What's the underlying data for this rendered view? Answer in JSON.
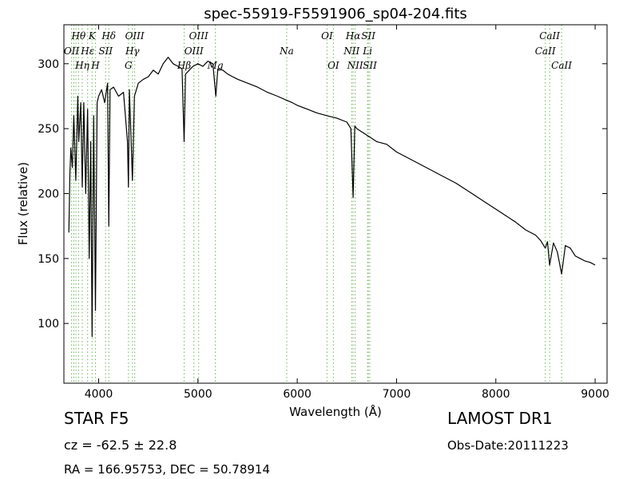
{
  "chart_data": {
    "type": "line",
    "title": "spec-55919-F5591906_sp04-204.fits",
    "xlabel": "Wavelength (Å)",
    "ylabel": "Flux (relative)",
    "xlim": [
      3650,
      9120
    ],
    "ylim": [
      54,
      330
    ],
    "xticks": [
      4000,
      5000,
      6000,
      7000,
      8000,
      9000
    ],
    "yticks": [
      100,
      150,
      200,
      250,
      300
    ],
    "grid": false,
    "line_color": "#000000",
    "marker_color": "#77bb66",
    "series": [
      {
        "x": [
          3700,
          3710,
          3720,
          3735,
          3750,
          3770,
          3790,
          3800,
          3820,
          3835,
          3850,
          3870,
          3889,
          3905,
          3920,
          3934,
          3950,
          3968,
          3985,
          4000,
          4030,
          4060,
          4090,
          4102,
          4115,
          4150,
          4200,
          4250,
          4290,
          4300,
          4310,
          4340,
          4360,
          4400,
          4450,
          4500,
          4550,
          4600,
          4650,
          4700,
          4750,
          4800,
          4840,
          4861,
          4875,
          4900,
          4950,
          5000,
          5050,
          5100,
          5150,
          5180,
          5200,
          5250,
          5300,
          5350,
          5400,
          5500,
          5600,
          5700,
          5800,
          5890,
          5950,
          6000,
          6100,
          6200,
          6300,
          6400,
          6500,
          6540,
          6563,
          6580,
          6600,
          6700,
          6800,
          6900,
          7000,
          7100,
          7200,
          7300,
          7400,
          7500,
          7600,
          7700,
          7800,
          7900,
          8000,
          8100,
          8200,
          8300,
          8400,
          8450,
          8498,
          8520,
          8542,
          8580,
          8620,
          8662,
          8700,
          8750,
          8800,
          8850,
          8900,
          8950,
          9000
        ],
        "y": [
          170,
          215,
          235,
          220,
          260,
          210,
          275,
          240,
          270,
          205,
          270,
          200,
          265,
          150,
          240,
          90,
          260,
          110,
          270,
          275,
          280,
          270,
          285,
          175,
          280,
          282,
          275,
          278,
          240,
          205,
          280,
          210,
          275,
          285,
          288,
          290,
          295,
          292,
          300,
          305,
          300,
          298,
          296,
          240,
          292,
          294,
          298,
          300,
          298,
          302,
          300,
          275,
          296,
          295,
          292,
          290,
          288,
          285,
          282,
          278,
          275,
          272,
          270,
          268,
          265,
          262,
          260,
          258,
          255,
          250,
          197,
          252,
          250,
          245,
          240,
          238,
          232,
          228,
          224,
          220,
          216,
          212,
          208,
          203,
          198,
          193,
          188,
          183,
          178,
          172,
          168,
          164,
          158,
          163,
          145,
          162,
          155,
          138,
          160,
          158,
          152,
          150,
          148,
          147,
          145
        ]
      }
    ],
    "lines": [
      {
        "wl": 3727,
        "label": "OII",
        "tier": 2
      },
      {
        "wl": 3750,
        "label": "",
        "tier": 0
      },
      {
        "wl": 3771,
        "label": "",
        "tier": 0
      },
      {
        "wl": 3798,
        "label": "Hθ",
        "tier": 1
      },
      {
        "wl": 3835,
        "label": "Hη",
        "tier": 3
      },
      {
        "wl": 3889,
        "label": "Hε",
        "tier": 2
      },
      {
        "wl": 3934,
        "label": "K",
        "tier": 1
      },
      {
        "wl": 3968,
        "label": "H",
        "tier": 3
      },
      {
        "wl": 4070,
        "label": "SII",
        "tier": 2
      },
      {
        "wl": 4102,
        "label": "Hδ",
        "tier": 1
      },
      {
        "wl": 4300,
        "label": "G",
        "tier": 3
      },
      {
        "wl": 4340,
        "label": "Hγ",
        "tier": 2
      },
      {
        "wl": 4363,
        "label": "OIII",
        "tier": 1
      },
      {
        "wl": 4861,
        "label": "Hβ",
        "tier": 3
      },
      {
        "wl": 4959,
        "label": "OIII",
        "tier": 2
      },
      {
        "wl": 5007,
        "label": "OIII",
        "tier": 1
      },
      {
        "wl": 5175,
        "label": "Mg",
        "tier": 3
      },
      {
        "wl": 5894,
        "label": "Na",
        "tier": 2
      },
      {
        "wl": 6300,
        "label": "OI",
        "tier": 1
      },
      {
        "wl": 6364,
        "label": "OI",
        "tier": 3
      },
      {
        "wl": 6548,
        "label": "NII",
        "tier": 2
      },
      {
        "wl": 6563,
        "label": "Hα",
        "tier": 1
      },
      {
        "wl": 6583,
        "label": "NII",
        "tier": 3
      },
      {
        "wl": 6708,
        "label": "Li",
        "tier": 2
      },
      {
        "wl": 6716,
        "label": "SII",
        "tier": 1
      },
      {
        "wl": 6731,
        "label": "SII",
        "tier": 3
      },
      {
        "wl": 8498,
        "label": "CaII",
        "tier": 2
      },
      {
        "wl": 8542,
        "label": "CaII",
        "tier": 1
      },
      {
        "wl": 8662,
        "label": "CaII",
        "tier": 3
      }
    ]
  },
  "info": {
    "class_label": "STAR   F5",
    "survey": "LAMOST DR1",
    "cz": "cz = -62.5 ± 22.8",
    "obs_date": "Obs-Date:20111223",
    "radec": "RA = 166.95753, DEC = 50.78914"
  }
}
